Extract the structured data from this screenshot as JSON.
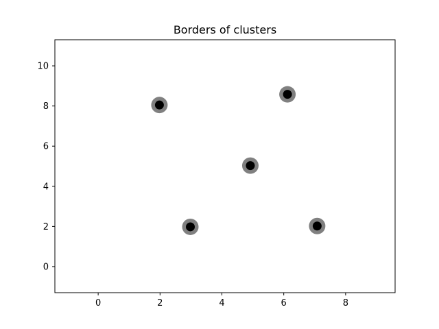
{
  "chart_data": {
    "type": "scatter",
    "title": "Borders of clusters",
    "xlabel": "",
    "ylabel": "",
    "xlim": [
      -1.4,
      9.6
    ],
    "ylim": [
      -1.3,
      11.3
    ],
    "xticks": [
      0,
      2,
      4,
      6,
      8
    ],
    "yticks": [
      0,
      2,
      4,
      6,
      8,
      10
    ],
    "grid": false,
    "series": [
      {
        "points": [
          {
            "x": 1.98,
            "y": 8.05
          },
          {
            "x": 6.12,
            "y": 8.58
          },
          {
            "x": 4.92,
            "y": 5.03
          },
          {
            "x": 2.98,
            "y": 1.98
          },
          {
            "x": 7.08,
            "y": 2.02
          }
        ],
        "outer_color": "#808080",
        "inner_color": "#000000"
      }
    ]
  }
}
